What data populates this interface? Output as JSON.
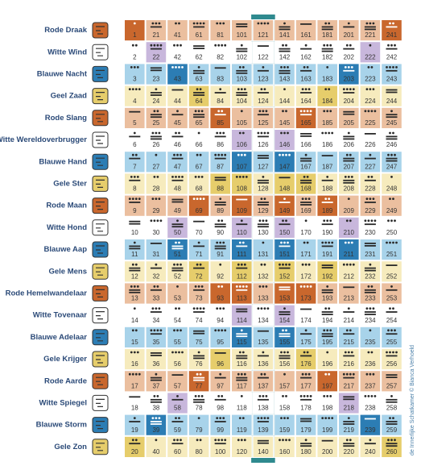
{
  "credit": "de Innerlijke Schatkamer © Bianca Verhoeld",
  "palette": {
    "base": [
      "#ebbf9f",
      "#ffffff",
      "#a8d3ea",
      "#f6ebbd"
    ],
    "highlight": [
      "#c9672d",
      "#c8b7dc",
      "#2c7db4",
      "#e6cd6b"
    ]
  },
  "highlighted": [
    1,
    20,
    22,
    39,
    43,
    50,
    51,
    58,
    64,
    69,
    72,
    77,
    85,
    88,
    93,
    96,
    106,
    107,
    108,
    109,
    110,
    111,
    112,
    113,
    114,
    115,
    146,
    147,
    148,
    149,
    150,
    151,
    152,
    153,
    154,
    155,
    165,
    168,
    173,
    176,
    184,
    189,
    192,
    197,
    203,
    210,
    211,
    218,
    222,
    239,
    241,
    260
  ],
  "rows": [
    {
      "label": "Rode Draak",
      "kins": [
        1,
        21,
        41,
        61,
        81,
        101,
        121,
        141,
        161,
        181,
        201,
        221,
        241
      ],
      "tones": [
        1,
        8,
        2,
        9,
        3,
        10,
        4,
        11,
        5,
        12,
        6,
        13,
        7
      ]
    },
    {
      "label": "Witte Wind",
      "kins": [
        2,
        22,
        42,
        62,
        82,
        102,
        122,
        142,
        162,
        182,
        202,
        222,
        242
      ],
      "tones": [
        2,
        9,
        3,
        10,
        4,
        11,
        5,
        12,
        6,
        13,
        7,
        1,
        8
      ]
    },
    {
      "label": "Blauwe Nacht",
      "kins": [
        3,
        23,
        43,
        63,
        83,
        103,
        123,
        143,
        163,
        183,
        203,
        223,
        243
      ],
      "tones": [
        3,
        10,
        4,
        11,
        5,
        12,
        6,
        13,
        7,
        1,
        8,
        2,
        9
      ]
    },
    {
      "label": "Geel Zaad",
      "kins": [
        4,
        24,
        44,
        64,
        84,
        104,
        124,
        144,
        164,
        184,
        204,
        224,
        244
      ],
      "tones": [
        4,
        11,
        5,
        12,
        6,
        13,
        7,
        1,
        8,
        2,
        9,
        3,
        10
      ]
    },
    {
      "label": "Rode Slang",
      "kins": [
        5,
        25,
        45,
        65,
        85,
        105,
        125,
        145,
        165,
        185,
        205,
        225,
        245
      ],
      "tones": [
        5,
        12,
        6,
        13,
        7,
        1,
        8,
        2,
        9,
        3,
        10,
        4,
        11
      ]
    },
    {
      "label": "Witte Wereldoverbrugger",
      "kins": [
        6,
        26,
        46,
        66,
        86,
        106,
        126,
        146,
        166,
        186,
        206,
        226,
        246
      ],
      "tones": [
        6,
        13,
        7,
        1,
        8,
        2,
        9,
        3,
        10,
        4,
        11,
        5,
        12
      ]
    },
    {
      "label": "Blauwe Hand",
      "kins": [
        7,
        27,
        47,
        67,
        87,
        107,
        127,
        147,
        167,
        187,
        207,
        227,
        247
      ],
      "tones": [
        7,
        1,
        8,
        2,
        9,
        3,
        10,
        4,
        11,
        5,
        12,
        6,
        13
      ]
    },
    {
      "label": "Gele Ster",
      "kins": [
        8,
        28,
        48,
        68,
        88,
        108,
        128,
        148,
        168,
        188,
        208,
        228,
        248
      ],
      "tones": [
        8,
        2,
        9,
        3,
        10,
        4,
        11,
        5,
        12,
        6,
        13,
        7,
        1
      ]
    },
    {
      "label": "Rode Maan",
      "kins": [
        9,
        29,
        49,
        69,
        89,
        109,
        129,
        149,
        169,
        189,
        209,
        229,
        249
      ],
      "tones": [
        9,
        3,
        10,
        4,
        11,
        5,
        12,
        6,
        13,
        7,
        1,
        8,
        2
      ]
    },
    {
      "label": "Witte Hond",
      "kins": [
        10,
        30,
        50,
        70,
        90,
        110,
        130,
        150,
        170,
        190,
        210,
        230,
        250
      ],
      "tones": [
        10,
        4,
        11,
        5,
        12,
        6,
        13,
        7,
        1,
        8,
        2,
        9,
        3
      ]
    },
    {
      "label": "Blauwe Aap",
      "kins": [
        11,
        31,
        51,
        71,
        91,
        111,
        131,
        151,
        171,
        191,
        211,
        231,
        251
      ],
      "tones": [
        11,
        5,
        12,
        6,
        13,
        7,
        1,
        8,
        2,
        9,
        3,
        10,
        4
      ]
    },
    {
      "label": "Gele Mens",
      "kins": [
        12,
        32,
        52,
        72,
        92,
        112,
        132,
        152,
        172,
        192,
        212,
        232,
        252
      ],
      "tones": [
        12,
        6,
        13,
        7,
        1,
        8,
        2,
        9,
        3,
        10,
        4,
        11,
        5
      ]
    },
    {
      "label": "Rode Hemelwandelaar",
      "kins": [
        13,
        33,
        53,
        73,
        93,
        113,
        133,
        153,
        173,
        193,
        213,
        233,
        253
      ],
      "tones": [
        13,
        7,
        1,
        8,
        2,
        9,
        3,
        10,
        4,
        11,
        5,
        12,
        6
      ]
    },
    {
      "label": "Witte Tovenaar",
      "kins": [
        14,
        34,
        54,
        74,
        94,
        114,
        134,
        154,
        174,
        194,
        214,
        234,
        254
      ],
      "tones": [
        1,
        8,
        2,
        9,
        3,
        10,
        4,
        11,
        5,
        12,
        6,
        13,
        7
      ]
    },
    {
      "label": "Blauwe Adelaar",
      "kins": [
        15,
        35,
        55,
        75,
        95,
        115,
        135,
        155,
        175,
        195,
        215,
        235,
        255
      ],
      "tones": [
        2,
        9,
        3,
        10,
        4,
        11,
        5,
        12,
        6,
        13,
        7,
        1,
        8
      ]
    },
    {
      "label": "Gele Krijger",
      "kins": [
        16,
        36,
        56,
        76,
        96,
        116,
        136,
        156,
        176,
        196,
        216,
        236,
        256
      ],
      "tones": [
        3,
        10,
        4,
        11,
        5,
        12,
        6,
        13,
        7,
        1,
        8,
        2,
        9
      ]
    },
    {
      "label": "Rode Aarde",
      "kins": [
        17,
        37,
        57,
        77,
        97,
        117,
        137,
        157,
        177,
        197,
        217,
        237,
        257
      ],
      "tones": [
        4,
        11,
        5,
        12,
        6,
        13,
        7,
        1,
        8,
        2,
        9,
        3,
        10
      ]
    },
    {
      "label": "Witte Spiegel",
      "kins": [
        18,
        38,
        58,
        78,
        98,
        118,
        138,
        158,
        178,
        198,
        218,
        238,
        258
      ],
      "tones": [
        5,
        12,
        6,
        13,
        7,
        1,
        8,
        2,
        9,
        3,
        10,
        4,
        11
      ]
    },
    {
      "label": "Blauwe Storm",
      "kins": [
        19,
        39,
        59,
        79,
        99,
        119,
        139,
        159,
        179,
        199,
        219,
        239,
        259
      ],
      "tones": [
        6,
        13,
        7,
        1,
        8,
        2,
        9,
        3,
        10,
        4,
        11,
        5,
        12
      ]
    },
    {
      "label": "Gele Zon",
      "kins": [
        20,
        40,
        60,
        80,
        100,
        120,
        140,
        160,
        180,
        200,
        220,
        240,
        260
      ],
      "tones": [
        7,
        1,
        8,
        2,
        9,
        3,
        10,
        4,
        11,
        5,
        12,
        6,
        13
      ]
    }
  ]
}
